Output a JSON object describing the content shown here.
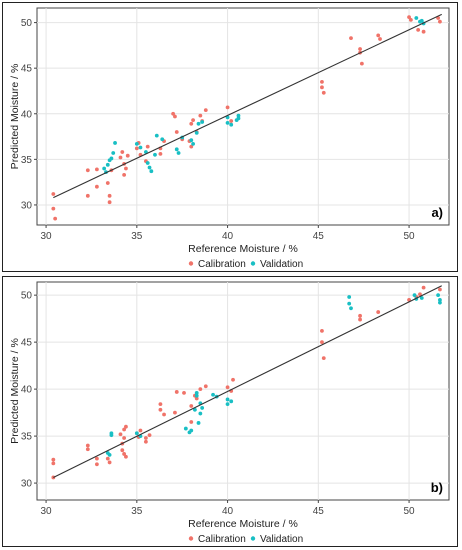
{
  "colors": {
    "calibration": "#F07369",
    "validation": "#19BFC4",
    "fit_line": "#333333",
    "grid": "#E4E4E4"
  },
  "chart_data": [
    {
      "type": "scatter",
      "panel_label": "a)",
      "xlabel": "Reference Moisture / %",
      "ylabel": "Predicted Moisture / %",
      "xlim": [
        29.5,
        52.2
      ],
      "ylim": [
        27.8,
        51.6
      ],
      "xticks": [
        30,
        35,
        40,
        45,
        50
      ],
      "yticks": [
        30,
        35,
        40,
        45,
        50
      ],
      "grid": true,
      "legend_position": "bottom",
      "fit_line": [
        [
          30.4,
          30.8
        ],
        [
          51.8,
          50.9
        ]
      ],
      "series": [
        {
          "name": "Calibration",
          "points": [
            [
              30.4,
              31.2
            ],
            [
              30.4,
              29.6
            ],
            [
              30.5,
              28.5
            ],
            [
              32.3,
              33.8
            ],
            [
              32.3,
              31.0
            ],
            [
              32.8,
              33.9
            ],
            [
              32.8,
              32.0
            ],
            [
              33.4,
              32.4
            ],
            [
              33.5,
              31.0
            ],
            [
              33.5,
              30.3
            ],
            [
              33.6,
              33.8
            ],
            [
              34.1,
              35.2
            ],
            [
              34.2,
              35.8
            ],
            [
              34.3,
              34.5
            ],
            [
              34.3,
              33.3
            ],
            [
              34.4,
              34.0
            ],
            [
              34.5,
              35.4
            ],
            [
              35.0,
              36.2
            ],
            [
              35.1,
              36.8
            ],
            [
              35.2,
              35.5
            ],
            [
              35.5,
              34.8
            ],
            [
              35.6,
              36.4
            ],
            [
              36.3,
              36.2
            ],
            [
              36.3,
              35.6
            ],
            [
              36.5,
              37.0
            ],
            [
              37.0,
              40.0
            ],
            [
              37.1,
              39.7
            ],
            [
              37.2,
              38.0
            ],
            [
              37.5,
              37.2
            ],
            [
              37.9,
              37.0
            ],
            [
              38.0,
              36.4
            ],
            [
              38.0,
              38.9
            ],
            [
              38.1,
              39.3
            ],
            [
              38.3,
              38.0
            ],
            [
              38.5,
              39.8
            ],
            [
              38.6,
              39.2
            ],
            [
              38.8,
              40.4
            ],
            [
              40.0,
              40.7
            ],
            [
              40.2,
              39.2
            ],
            [
              45.2,
              43.5
            ],
            [
              45.2,
              42.9
            ],
            [
              45.3,
              42.3
            ],
            [
              46.8,
              48.3
            ],
            [
              47.3,
              47.1
            ],
            [
              47.3,
              46.7
            ],
            [
              47.4,
              45.5
            ],
            [
              48.3,
              48.6
            ],
            [
              48.4,
              48.2
            ],
            [
              50.0,
              50.6
            ],
            [
              50.1,
              50.3
            ],
            [
              50.5,
              49.2
            ],
            [
              50.8,
              49.0
            ],
            [
              51.6,
              50.5
            ],
            [
              51.7,
              50.1
            ]
          ]
        },
        {
          "name": "Validation",
          "points": [
            [
              33.2,
              34.0
            ],
            [
              33.3,
              33.6
            ],
            [
              33.4,
              34.4
            ],
            [
              33.5,
              34.9
            ],
            [
              33.7,
              35.7
            ],
            [
              33.8,
              36.8
            ],
            [
              33.6,
              35.1
            ],
            [
              35.0,
              36.7
            ],
            [
              35.2,
              36.3
            ],
            [
              35.5,
              35.8
            ],
            [
              35.6,
              34.6
            ],
            [
              35.7,
              34.1
            ],
            [
              35.8,
              33.7
            ],
            [
              36.0,
              35.5
            ],
            [
              36.1,
              37.6
            ],
            [
              36.4,
              37.2
            ],
            [
              37.2,
              36.1
            ],
            [
              37.3,
              35.7
            ],
            [
              37.5,
              37.4
            ],
            [
              38.0,
              37.1
            ],
            [
              38.1,
              36.7
            ],
            [
              38.3,
              37.9
            ],
            [
              38.4,
              38.9
            ],
            [
              38.6,
              39.1
            ],
            [
              40.0,
              39.0
            ],
            [
              40.0,
              39.6
            ],
            [
              40.2,
              38.8
            ],
            [
              40.5,
              39.3
            ],
            [
              40.6,
              39.8
            ],
            [
              40.6,
              39.5
            ],
            [
              50.4,
              50.5
            ],
            [
              50.6,
              50.1
            ],
            [
              50.7,
              50.2
            ],
            [
              50.8,
              49.9
            ]
          ]
        }
      ]
    },
    {
      "type": "scatter",
      "panel_label": "b)",
      "xlabel": "Reference Moisture / %",
      "ylabel": "Predicted Moisture / %",
      "xlim": [
        29.5,
        52.2
      ],
      "ylim": [
        28.2,
        51.4
      ],
      "xticks": [
        30,
        35,
        40,
        45,
        50
      ],
      "yticks": [
        30,
        35,
        40,
        45,
        50
      ],
      "grid": true,
      "legend_position": "bottom",
      "fit_line": [
        [
          30.4,
          30.6
        ],
        [
          51.8,
          51.0
        ]
      ],
      "series": [
        {
          "name": "Calibration",
          "points": [
            [
              30.4,
              32.5
            ],
            [
              30.4,
              32.1
            ],
            [
              30.4,
              30.6
            ],
            [
              32.3,
              34.0
            ],
            [
              32.3,
              33.6
            ],
            [
              32.8,
              32.6
            ],
            [
              32.8,
              32.0
            ],
            [
              33.4,
              32.6
            ],
            [
              33.5,
              32.2
            ],
            [
              34.1,
              35.2
            ],
            [
              34.2,
              34.2
            ],
            [
              34.2,
              33.5
            ],
            [
              34.3,
              35.7
            ],
            [
              34.3,
              34.8
            ],
            [
              34.3,
              33.1
            ],
            [
              34.4,
              32.8
            ],
            [
              34.4,
              36.0
            ],
            [
              35.0,
              35.3
            ],
            [
              35.1,
              34.9
            ],
            [
              35.2,
              35.6
            ],
            [
              35.5,
              34.4
            ],
            [
              35.5,
              34.8
            ],
            [
              35.7,
              35.1
            ],
            [
              36.3,
              38.4
            ],
            [
              36.3,
              37.8
            ],
            [
              36.5,
              37.3
            ],
            [
              37.1,
              37.5
            ],
            [
              37.2,
              39.7
            ],
            [
              37.6,
              39.6
            ],
            [
              38.0,
              36.5
            ],
            [
              38.0,
              38.2
            ],
            [
              38.2,
              39.3
            ],
            [
              38.3,
              39.0
            ],
            [
              38.5,
              40.0
            ],
            [
              38.8,
              40.3
            ],
            [
              40.0,
              40.2
            ],
            [
              40.2,
              39.8
            ],
            [
              40.3,
              41.0
            ],
            [
              45.2,
              46.2
            ],
            [
              45.2,
              45.0
            ],
            [
              45.3,
              43.3
            ],
            [
              47.3,
              47.8
            ],
            [
              47.3,
              47.4
            ],
            [
              48.3,
              48.2
            ],
            [
              50.0,
              49.5
            ],
            [
              50.4,
              49.8
            ],
            [
              50.6,
              50.1
            ],
            [
              50.8,
              50.8
            ],
            [
              51.7,
              50.6
            ]
          ]
        },
        {
          "name": "Validation",
          "points": [
            [
              33.4,
              33.2
            ],
            [
              33.5,
              33.0
            ],
            [
              33.6,
              35.1
            ],
            [
              33.6,
              35.3
            ],
            [
              35.0,
              35.3
            ],
            [
              35.2,
              35.0
            ],
            [
              37.7,
              35.8
            ],
            [
              37.9,
              35.4
            ],
            [
              38.0,
              35.6
            ],
            [
              38.2,
              37.8
            ],
            [
              38.3,
              39.3
            ],
            [
              38.3,
              39.6
            ],
            [
              38.4,
              36.4
            ],
            [
              38.5,
              37.4
            ],
            [
              38.5,
              38.5
            ],
            [
              38.6,
              38.0
            ],
            [
              39.2,
              39.4
            ],
            [
              39.4,
              39.2
            ],
            [
              40.0,
              38.4
            ],
            [
              40.0,
              38.9
            ],
            [
              40.2,
              38.7
            ],
            [
              46.7,
              49.8
            ],
            [
              46.7,
              49.1
            ],
            [
              46.8,
              48.6
            ],
            [
              50.3,
              50.0
            ],
            [
              50.4,
              49.6
            ],
            [
              50.7,
              49.7
            ],
            [
              51.6,
              50.0
            ],
            [
              51.7,
              49.5
            ],
            [
              51.7,
              49.2
            ]
          ]
        }
      ]
    }
  ]
}
